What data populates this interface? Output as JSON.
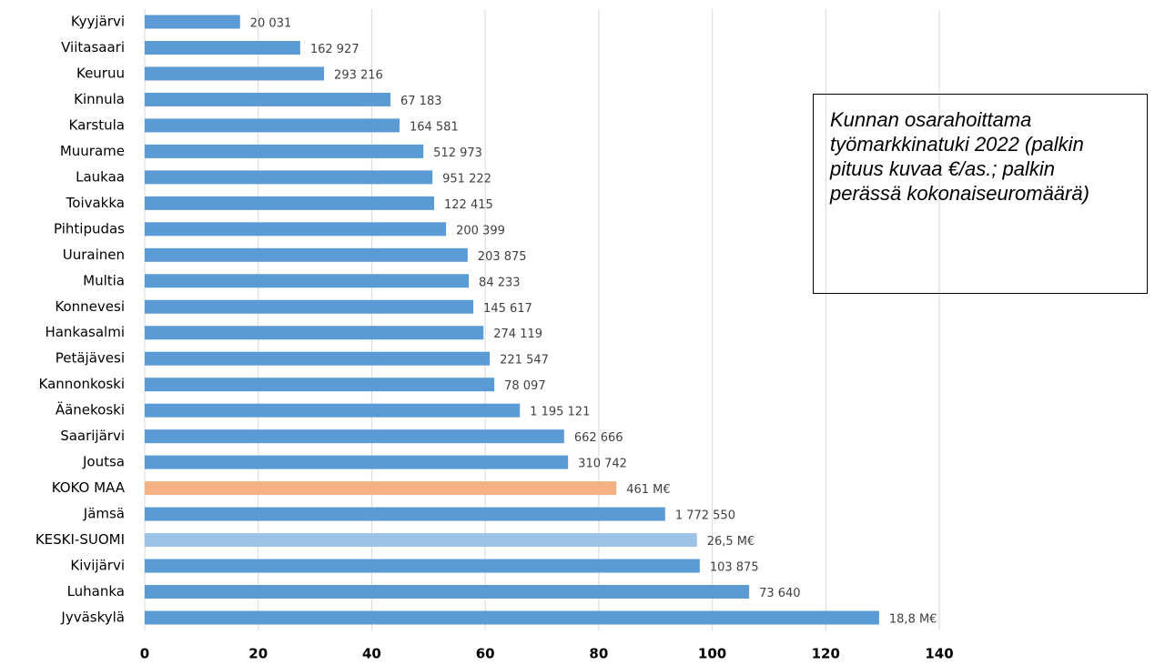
{
  "chart_data": {
    "type": "barh",
    "annotation": "Kunnan osarahoittama työmarkkinatuki 2022 (palkin pituus kuvaa €/as.; palkin perässä kokonaiseuromäärä)",
    "categories": [
      "Kyyjärvi",
      "Viitasaari",
      "Keuruu",
      "Kinnula",
      "Karstula",
      "Muurame",
      "Laukaa",
      "Toivakka",
      "Pihtipudas",
      "Uurainen",
      "Multia",
      "Konnevesi",
      "Hankasalmi",
      "Petäjävesi",
      "Kannonkoski",
      "Äänekoski",
      "Saarijärvi",
      "Joutsa",
      "KOKO MAA",
      "Jämsä",
      "KESKI-SUOMI",
      "Kivijärvi",
      "Luhanka",
      "Jyväskylä"
    ],
    "values": [
      16.8,
      27.4,
      31.6,
      43.3,
      44.9,
      49.1,
      50.7,
      51.0,
      53.1,
      56.9,
      57.1,
      57.9,
      59.7,
      60.8,
      61.6,
      66.1,
      73.9,
      74.6,
      83.1,
      91.7,
      97.3,
      97.8,
      106.5,
      129.4
    ],
    "totals": [
      "20 031",
      "162 927",
      "293 216",
      "67 183",
      "164 581",
      "512 973",
      "951 222",
      "122 415",
      "200 399",
      "203 875",
      "84 233",
      "145 617",
      "274 119",
      "221 547",
      "78 097",
      "1 195 121",
      "662 666",
      "310 742",
      "461 M€",
      "1 772 550",
      "26,5 M€",
      "103 875",
      "73 640",
      "18,8 M€"
    ],
    "colors": [
      "#5b9bd5",
      "#5b9bd5",
      "#5b9bd5",
      "#5b9bd5",
      "#5b9bd5",
      "#5b9bd5",
      "#5b9bd5",
      "#5b9bd5",
      "#5b9bd5",
      "#5b9bd5",
      "#5b9bd5",
      "#5b9bd5",
      "#5b9bd5",
      "#5b9bd5",
      "#5b9bd5",
      "#5b9bd5",
      "#5b9bd5",
      "#5b9bd5",
      "#f4b183",
      "#5b9bd5",
      "#9dc3e6",
      "#5b9bd5",
      "#5b9bd5",
      "#5b9bd5"
    ],
    "xlim": [
      0,
      140
    ],
    "xticks": [
      0,
      20,
      40,
      60,
      80,
      100,
      120,
      140
    ],
    "grid": true
  }
}
